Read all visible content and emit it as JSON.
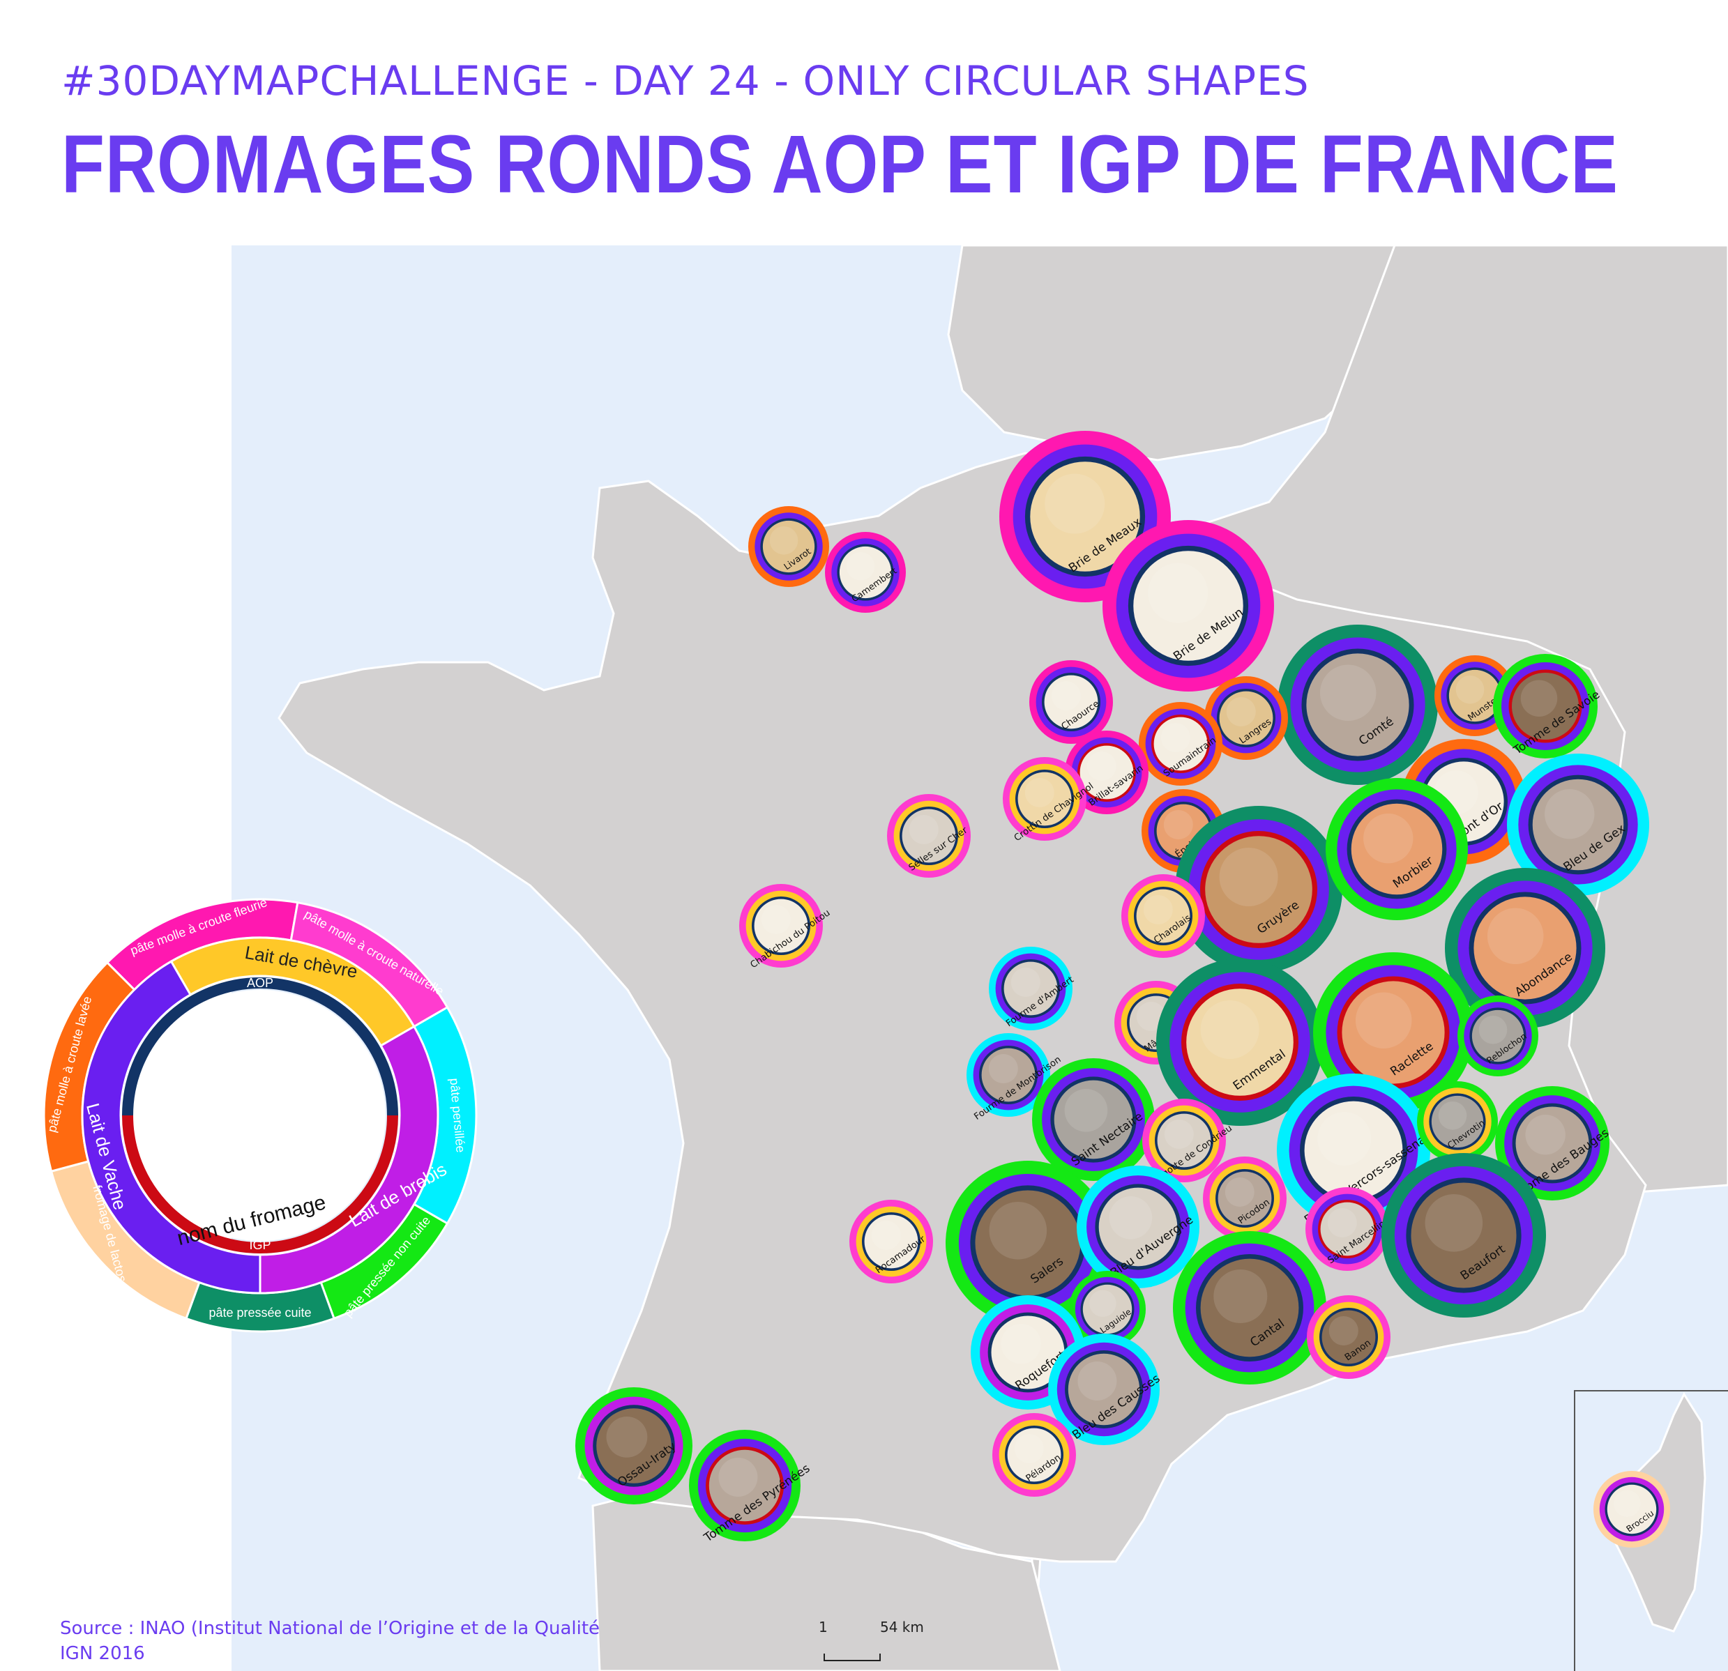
{
  "header": {
    "subtitle": "#30DAYMAPCHALLENGE - DAY 24 - ONLY CIRCULAR SHAPES",
    "title": "FROMAGES RONDS AOP ET IGP DE FRANCE"
  },
  "footer": {
    "source_line1": "Source : INAO (Institut National de l’Origine et de la Qualité",
    "source_line2": "IGN 2016",
    "scale_start": "1",
    "scale_end": "54 km"
  },
  "colors": {
    "sea": "#e4eefb",
    "land": "#d3d1d1",
    "border": "#ffffff",
    "text_accent": "#6a3cf0",
    "milk": {
      "vache": "#6a1ff0",
      "chevre": "#ffc828",
      "brebis": "#c01ee6"
    },
    "label": {
      "AOP": "#123466",
      "IGP": "#cc0a14"
    },
    "pate": {
      "pate molle a croute fleurie": "#ff18b0",
      "pate molle a croute naturelle": "#ff3ccf",
      "pate molle a croute lavee": "#ff6a10",
      "pate persillee": "#00f0ff",
      "pate pressee non cuite": "#14e814",
      "pate pressee cuite": "#0e8f66",
      "fromage de lactoserum": "#ffd2a0"
    },
    "cheese_fill": [
      "#f4eee2",
      "#e2c490",
      "#c89868",
      "#f0d8a8",
      "#d9d1c6",
      "#b7a79a",
      "#8a6f55",
      "#e9a070",
      "#a9a49e"
    ]
  },
  "legend": {
    "outer": [
      "pâte molle à croute fleurie",
      "pâte molle à croute naturelle",
      "pâte persillée",
      "pâte pressée non cuite",
      "pâte pressée cuite",
      "fromage de lactoserum",
      "pâte molle à croute lavée"
    ],
    "milk": [
      "Lait de chèvre",
      "Lait de brebis",
      "Lait de Vache"
    ],
    "labels": [
      "AOP",
      "IGP"
    ],
    "center": "nom du fromage"
  },
  "cheeses": [
    {
      "name": "Livarot",
      "milk": "vache",
      "pate": "pate molle a croute lavee",
      "label": "AOP",
      "fill": 1
    },
    {
      "name": "Camembert",
      "milk": "vache",
      "pate": "pate molle a croute fleurie",
      "label": "AOP",
      "fill": 0
    },
    {
      "name": "Brie de Meaux",
      "milk": "vache",
      "pate": "pate molle a croute fleurie",
      "label": "AOP",
      "fill": 3
    },
    {
      "name": "Brie de Melun",
      "milk": "vache",
      "pate": "pate molle a croute fleurie",
      "label": "AOP",
      "fill": 0
    },
    {
      "name": "Comté",
      "milk": "vache",
      "pate": "pate pressee cuite",
      "label": "AOP",
      "fill": 5
    },
    {
      "name": "Munster",
      "milk": "vache",
      "pate": "pate molle a croute lavee",
      "label": "AOP",
      "fill": 1
    },
    {
      "name": "Tomme de Savoie",
      "milk": "vache",
      "pate": "pate pressee non cuite",
      "label": "IGP",
      "fill": 6
    },
    {
      "name": "Chaource",
      "milk": "vache",
      "pate": "pate molle a croute fleurie",
      "label": "AOP",
      "fill": 0
    },
    {
      "name": "Langres",
      "milk": "vache",
      "pate": "pate molle a croute lavee",
      "label": "AOP",
      "fill": 1
    },
    {
      "name": "Soumaintrain",
      "milk": "vache",
      "pate": "pate molle a croute lavee",
      "label": "IGP",
      "fill": 0
    },
    {
      "name": "Brillat-savarin",
      "milk": "vache",
      "pate": "pate molle a croute fleurie",
      "label": "IGP",
      "fill": 0
    },
    {
      "name": "Crottin de Chavignol",
      "milk": "chevre",
      "pate": "pate molle a croute naturelle",
      "label": "AOP",
      "fill": 3
    },
    {
      "name": "Mont d'Or",
      "milk": "vache",
      "pate": "pate molle a croute lavee",
      "label": "AOP",
      "fill": 0
    },
    {
      "name": "Bleu de Gex",
      "milk": "vache",
      "pate": "pate persillee",
      "label": "AOP",
      "fill": 5
    },
    {
      "name": "Selles sur Cher",
      "milk": "chevre",
      "pate": "pate molle a croute naturelle",
      "label": "AOP",
      "fill": 4
    },
    {
      "name": "Époisses",
      "milk": "vache",
      "pate": "pate molle a croute lavee",
      "label": "AOP",
      "fill": 7
    },
    {
      "name": "Gruyère",
      "milk": "vache",
      "pate": "pate pressee cuite",
      "label": "IGP",
      "fill": 2
    },
    {
      "name": "Morbier",
      "milk": "vache",
      "pate": "pate pressee non cuite",
      "label": "AOP",
      "fill": 7
    },
    {
      "name": "Chabichou du Poitou",
      "milk": "chevre",
      "pate": "pate molle a croute naturelle",
      "label": "AOP",
      "fill": 0
    },
    {
      "name": "Charolais",
      "milk": "chevre",
      "pate": "pate molle a croute naturelle",
      "label": "AOP",
      "fill": 3
    },
    {
      "name": "Abondance",
      "milk": "vache",
      "pate": "pate pressee cuite",
      "label": "AOP",
      "fill": 7
    },
    {
      "name": "Fourme d'Ambert",
      "milk": "vache",
      "pate": "pate persillee",
      "label": "AOP",
      "fill": 4
    },
    {
      "name": "Mâconnais",
      "milk": "chevre",
      "pate": "pate molle a croute naturelle",
      "label": "AOP",
      "fill": 4
    },
    {
      "name": "Emmental",
      "milk": "vache",
      "pate": "pate pressee cuite",
      "label": "IGP",
      "fill": 3
    },
    {
      "name": "Raclette",
      "milk": "vache",
      "pate": "pate pressee non cuite",
      "label": "IGP",
      "fill": 7
    },
    {
      "name": "Reblochon",
      "milk": "vache",
      "pate": "pate pressee non cuite",
      "label": "AOP",
      "fill": 8
    },
    {
      "name": "Fourme de Montbrison",
      "milk": "vache",
      "pate": "pate persillee",
      "label": "AOP",
      "fill": 5
    },
    {
      "name": "Saint Nectaire",
      "milk": "vache",
      "pate": "pate pressee non cuite",
      "label": "AOP",
      "fill": 8
    },
    {
      "name": "Rigotte de Condrieu",
      "milk": "chevre",
      "pate": "pate molle a croute naturelle",
      "label": "AOP",
      "fill": 4
    },
    {
      "name": "Bleu du Vercors-sassenage",
      "milk": "vache",
      "pate": "pate persillee",
      "label": "AOP",
      "fill": 0
    },
    {
      "name": "Chevrotin",
      "milk": "chevre",
      "pate": "pate pressee non cuite",
      "label": "AOP",
      "fill": 8
    },
    {
      "name": "Tome des Bauges",
      "milk": "vache",
      "pate": "pate pressee non cuite",
      "label": "AOP",
      "fill": 5
    },
    {
      "name": "Picodon",
      "milk": "chevre",
      "pate": "pate molle a croute naturelle",
      "label": "AOP",
      "fill": 5
    },
    {
      "name": "Saint Marcellin",
      "milk": "vache",
      "pate": "pate molle a croute naturelle",
      "label": "IGP",
      "fill": 4
    },
    {
      "name": "Rocamadour",
      "milk": "chevre",
      "pate": "pate molle a croute naturelle",
      "label": "AOP",
      "fill": 0
    },
    {
      "name": "Salers",
      "milk": "vache",
      "pate": "pate pressee non cuite",
      "label": "AOP",
      "fill": 6
    },
    {
      "name": "Bleu d'Auvergne",
      "milk": "vache",
      "pate": "pate persillee",
      "label": "AOP",
      "fill": 4
    },
    {
      "name": "Beaufort",
      "milk": "vache",
      "pate": "pate pressee cuite",
      "label": "AOP",
      "fill": 6
    },
    {
      "name": "Laguiole",
      "milk": "vache",
      "pate": "pate pressee non cuite",
      "label": "AOP",
      "fill": 4
    },
    {
      "name": "Cantal",
      "milk": "vache",
      "pate": "pate pressee non cuite",
      "label": "AOP",
      "fill": 6
    },
    {
      "name": "Banon",
      "milk": "chevre",
      "pate": "pate molle a croute naturelle",
      "label": "AOP",
      "fill": 6
    },
    {
      "name": "Roquefort",
      "milk": "brebis",
      "pate": "pate persillee",
      "label": "AOP",
      "fill": 0
    },
    {
      "name": "Bleu des Causses",
      "milk": "vache",
      "pate": "pate persillee",
      "label": "AOP",
      "fill": 5
    },
    {
      "name": "Pélardon",
      "milk": "chevre",
      "pate": "pate molle a croute naturelle",
      "label": "AOP",
      "fill": 0
    },
    {
      "name": "Ossau-Iraty",
      "milk": "brebis",
      "pate": "pate pressee non cuite",
      "label": "AOP",
      "fill": 6
    },
    {
      "name": "Tomme des Pyrénées",
      "milk": "vache",
      "pate": "pate pressee non cuite",
      "label": "IGP",
      "fill": 5
    },
    {
      "name": "Brocciu",
      "milk": "brebis",
      "pate": "fromage de lactoserum",
      "label": "AOP",
      "fill": 0
    }
  ]
}
